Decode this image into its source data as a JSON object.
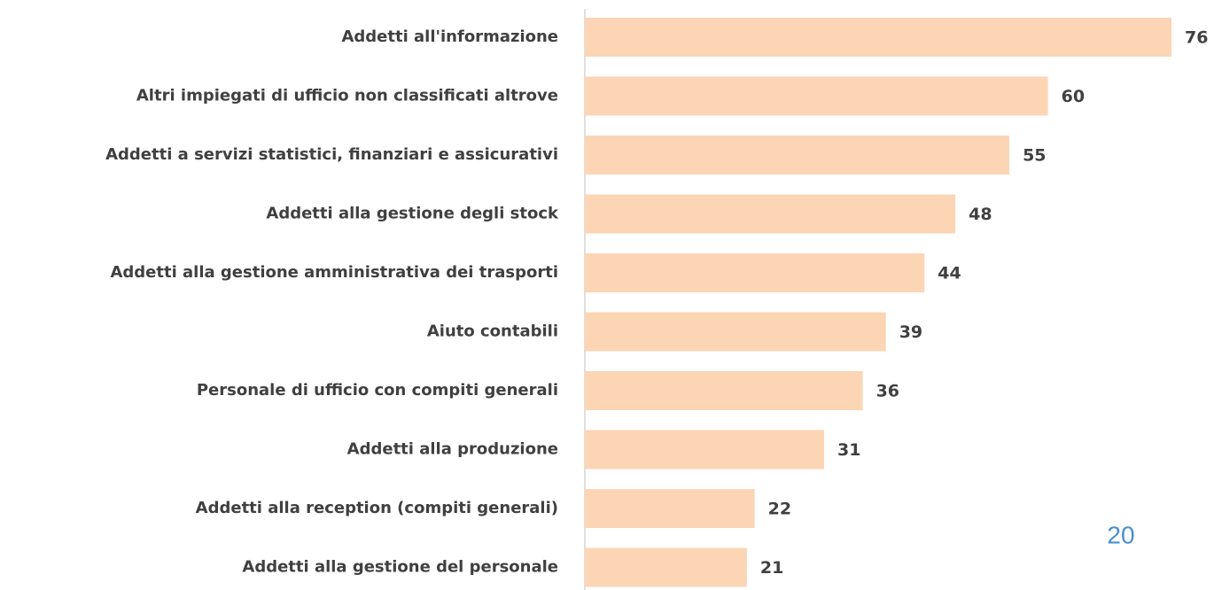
{
  "chart_data": {
    "type": "barh",
    "categories": [
      "Addetti all'informazione",
      "Altri impiegati di ufficio non classificati altrove",
      "Addetti a servizi statistici, finanziari e assicurativi",
      "Addetti alla gestione degli stock",
      "Addetti alla gestione amministrativa dei trasporti",
      "Aiuto contabili",
      "Personale di ufficio con compiti generali",
      "Addetti alla produzione",
      "Addetti alla reception (compiti generali)",
      "Addetti alla gestione del personale"
    ],
    "values": [
      76,
      60,
      55,
      48,
      44,
      39,
      36,
      31,
      22,
      21
    ],
    "color": "#fcd5b4"
  },
  "page_number": "20"
}
